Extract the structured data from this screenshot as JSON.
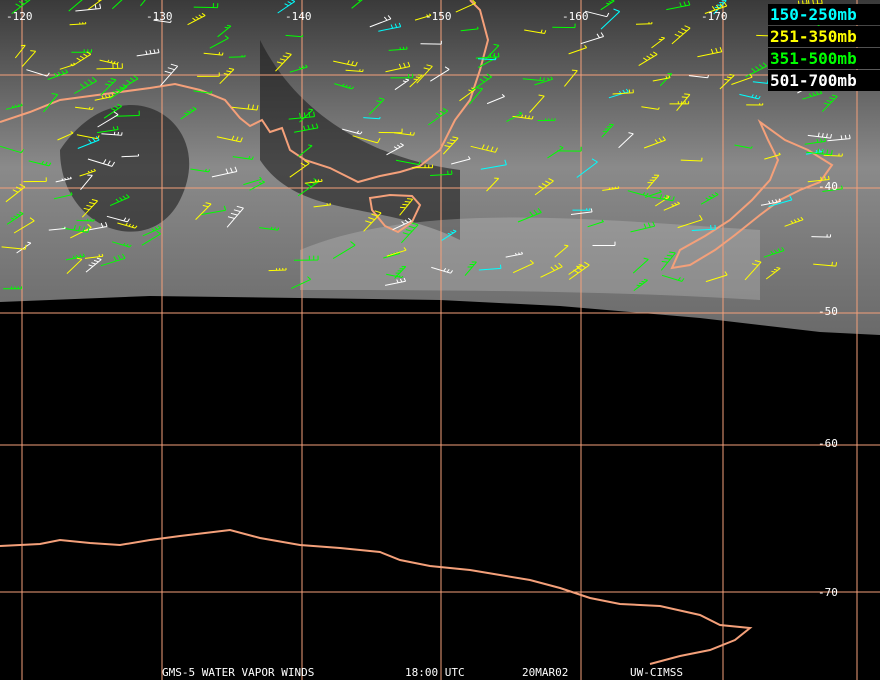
{
  "grid": {
    "longitudes": [
      "-120",
      "-130",
      "-140",
      "-150",
      "-160",
      "-170"
    ],
    "latitudes": [
      "-40",
      "-50",
      "-60",
      "-70"
    ]
  },
  "legend": [
    {
      "label": "150-250mb",
      "color": "#00ffff"
    },
    {
      "label": "251-350mb",
      "color": "#ffff00"
    },
    {
      "label": "351-500mb",
      "color": "#00ff00"
    },
    {
      "label": "501-700mb",
      "color": "#ffffff"
    }
  ],
  "footer": [
    "GMS-5 WATER VAPOR WINDS",
    "18:00 UTC",
    "20MAR02",
    "UW-CIMSS"
  ]
}
